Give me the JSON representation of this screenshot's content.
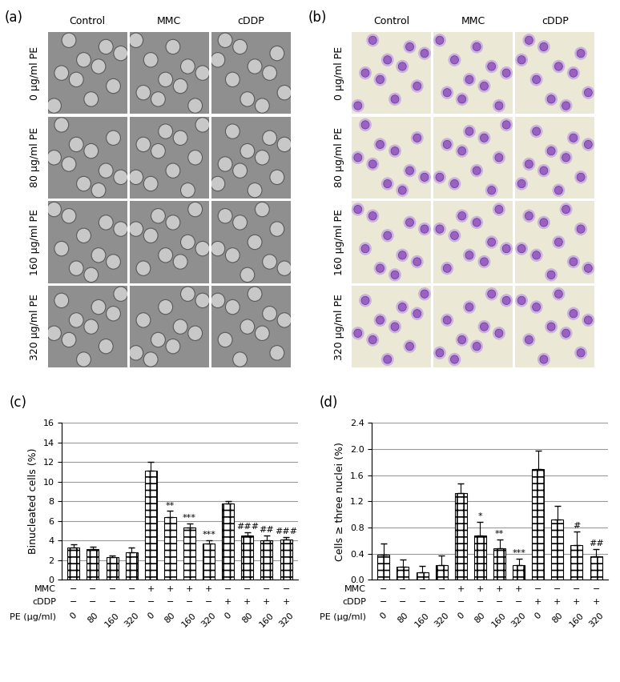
{
  "image_panels": [
    {
      "label": "(a)",
      "columns": [
        "Control",
        "MMC",
        "cDDP"
      ],
      "rows": [
        "0 µg/ml PE",
        "80 µg/ml PE",
        "160 µg/ml PE",
        "320 µg/ml PE"
      ]
    },
    {
      "label": "(b)",
      "columns": [
        "Control",
        "MMC",
        "cDDP"
      ],
      "rows": [
        "0 µg/ml PE",
        "80 µg/ml PE",
        "160 µg/ml PE",
        "320 µg/ml PE"
      ]
    }
  ],
  "chart_data": [
    {
      "type": "bar",
      "panel": "(c)",
      "y_label": "Binucleated cells (%)",
      "categories": [
        "0",
        "80",
        "160",
        "320",
        "0",
        "80",
        "160",
        "320",
        "0",
        "80",
        "160",
        "320"
      ],
      "category_name": "PE (µg/ml)",
      "category_rows": [
        {
          "name": "MMC",
          "labels": [
            "−",
            "−",
            "−",
            "−",
            "+",
            "+",
            "+",
            "+",
            "−",
            "−",
            "−",
            "−"
          ]
        },
        {
          "name": "cDDP",
          "labels": [
            "−",
            "−",
            "−",
            "−",
            "−",
            "−",
            "−",
            "−",
            "+",
            "+",
            "+",
            "+"
          ]
        }
      ],
      "values": [
        3.3,
        3.1,
        2.3,
        2.8,
        11.1,
        6.4,
        5.3,
        3.7,
        7.8,
        4.5,
        4.0,
        4.1
      ],
      "errors": [
        0.3,
        0.3,
        0.15,
        0.5,
        0.9,
        0.6,
        0.4,
        0.3,
        0.25,
        0.3,
        0.5,
        0.25
      ],
      "significance": [
        null,
        null,
        null,
        null,
        null,
        "**",
        "***",
        "***",
        null,
        "###",
        "##",
        "###"
      ],
      "ylim": [
        0,
        16
      ],
      "yticks": [
        0,
        2,
        4,
        6,
        8,
        10,
        12,
        14,
        16
      ],
      "grid": true,
      "color": "#000000"
    },
    {
      "type": "bar",
      "panel": "(d)",
      "y_label": "Cells ≥ three nuclei (%)",
      "categories": [
        "0",
        "80",
        "160",
        "320",
        "0",
        "80",
        "160",
        "320",
        "0",
        "80",
        "160",
        "320"
      ],
      "category_name": "PE (µg/ml)",
      "category_rows": [
        {
          "name": "MMC",
          "labels": [
            "−",
            "−",
            "−",
            "−",
            "+",
            "+",
            "+",
            "+",
            "−",
            "−",
            "−",
            "−"
          ]
        },
        {
          "name": "cDDP",
          "labels": [
            "−",
            "−",
            "−",
            "−",
            "−",
            "−",
            "−",
            "−",
            "+",
            "+",
            "+",
            "+"
          ]
        }
      ],
      "values": [
        0.38,
        0.2,
        0.11,
        0.22,
        1.33,
        0.68,
        0.48,
        0.22,
        1.69,
        0.92,
        0.53,
        0.36
      ],
      "errors": [
        0.17,
        0.11,
        0.1,
        0.15,
        0.14,
        0.2,
        0.13,
        0.1,
        0.28,
        0.21,
        0.21,
        0.11
      ],
      "significance": [
        null,
        null,
        null,
        null,
        null,
        "*",
        "**",
        "***",
        null,
        null,
        "#",
        "##"
      ],
      "ylim": [
        0,
        2.4
      ],
      "yticks": [
        {
          "value": 0,
          "label": "0.0"
        },
        0.4,
        0.8,
        1.2,
        1.6,
        2.0,
        2.4
      ],
      "grid": true,
      "color": "#000000"
    }
  ]
}
